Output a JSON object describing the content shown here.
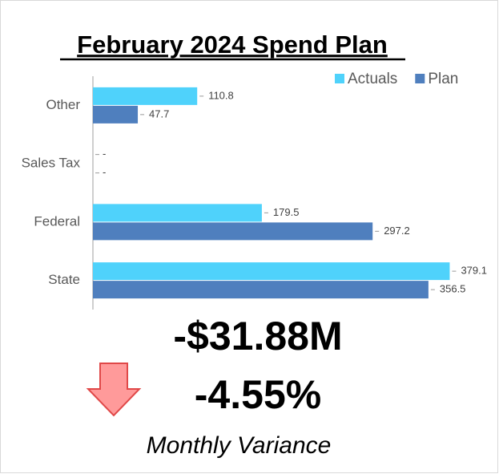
{
  "chart_data": {
    "type": "bar",
    "orientation": "horizontal",
    "title": "February 2024 Spend Plan",
    "categories": [
      "Other",
      "Sales Tax",
      "Federal",
      "State"
    ],
    "series": [
      {
        "name": "Actuals",
        "color": "#4fd2fb",
        "values": [
          110.8,
          0,
          179.5,
          379.1
        ],
        "value_labels": [
          "110.8",
          "-",
          "179.5",
          "379.1"
        ]
      },
      {
        "name": "Plan",
        "color": "#4f7fbe",
        "values": [
          47.7,
          0,
          297.2,
          356.5
        ],
        "value_labels": [
          "47.7",
          "-",
          "297.2",
          "356.5"
        ]
      }
    ],
    "xlim": [
      0,
      400
    ],
    "legend": "top-right",
    "grid": false
  },
  "variance": {
    "amount": "-$31.88M",
    "percent": "-4.55%",
    "label": "Monthly Variance"
  }
}
